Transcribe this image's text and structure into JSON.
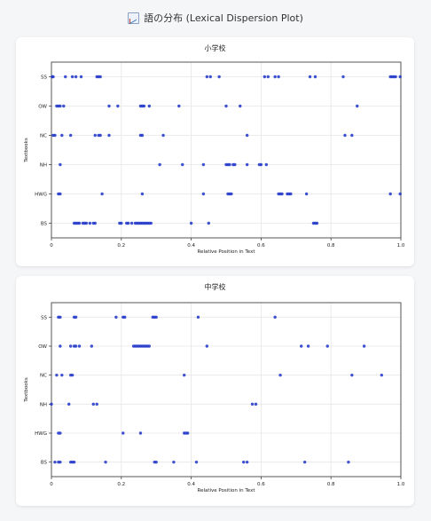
{
  "header": {
    "title": "語の分布 (Lexical Dispersion Plot)",
    "icon": "chart-icon"
  },
  "charts_meta": [
    {
      "card_title": "小学校"
    },
    {
      "card_title": "中学校"
    }
  ],
  "chart_data": [
    {
      "type": "scatter",
      "title": "小学校",
      "xlabel": "Relative Position in Text",
      "ylabel": "Textbooks",
      "xlim": [
        0,
        1
      ],
      "xticks": [
        "0",
        "0.2",
        "0.4",
        "0.6",
        "0.8",
        "1.0"
      ],
      "categories": [
        "SS",
        "OW",
        "NC",
        "NH",
        "HWG",
        "BS"
      ],
      "grid": true,
      "marker_color": "#1f35c9",
      "series": [
        {
          "category": "SS",
          "x": [
            0.002,
            0.005,
            0.04,
            0.06,
            0.07,
            0.085,
            0.13,
            0.135,
            0.14,
            0.445,
            0.455,
            0.48,
            0.61,
            0.62,
            0.64,
            0.65,
            0.74,
            0.755,
            0.835,
            0.97,
            0.975,
            0.98,
            0.985,
            0.998
          ]
        },
        {
          "category": "OW",
          "x": [
            0.015,
            0.02,
            0.025,
            0.035,
            0.165,
            0.19,
            0.255,
            0.26,
            0.265,
            0.28,
            0.365,
            0.5,
            0.54,
            0.875
          ]
        },
        {
          "category": "NC",
          "x": [
            0.005,
            0.01,
            0.03,
            0.055,
            0.125,
            0.135,
            0.14,
            0.165,
            0.255,
            0.26,
            0.32,
            0.56,
            0.84,
            0.86
          ]
        },
        {
          "category": "NH",
          "x": [
            0.025,
            0.31,
            0.375,
            0.435,
            0.5,
            0.505,
            0.51,
            0.52,
            0.525,
            0.56,
            0.595,
            0.6,
            0.615
          ]
        },
        {
          "category": "HWG",
          "x": [
            0.02,
            0.025,
            0.145,
            0.26,
            0.435,
            0.505,
            0.51,
            0.515,
            0.65,
            0.655,
            0.66,
            0.675,
            0.68,
            0.685,
            0.73,
            0.97,
            0.998
          ]
        },
        {
          "category": "BS",
          "x": [
            0.065,
            0.07,
            0.075,
            0.08,
            0.09,
            0.095,
            0.1,
            0.11,
            0.12,
            0.125,
            0.195,
            0.2,
            0.215,
            0.22,
            0.23,
            0.24,
            0.245,
            0.25,
            0.255,
            0.26,
            0.265,
            0.27,
            0.275,
            0.28,
            0.285,
            0.4,
            0.45,
            0.75,
            0.755,
            0.76
          ]
        }
      ]
    },
    {
      "type": "scatter",
      "title": "中学校",
      "xlabel": "Relative Position in Text",
      "ylabel": "Textbooks",
      "xlim": [
        0,
        1
      ],
      "xticks": [
        "0",
        "0.2",
        "0.4",
        "0.6",
        "0.8",
        "1.0"
      ],
      "categories": [
        "SS",
        "OW",
        "NC",
        "NH",
        "HWG",
        "BS"
      ],
      "grid": true,
      "marker_color": "#1f35c9",
      "series": [
        {
          "category": "SS",
          "x": [
            0.02,
            0.025,
            0.065,
            0.07,
            0.185,
            0.205,
            0.21,
            0.29,
            0.295,
            0.3,
            0.42,
            0.64
          ]
        },
        {
          "category": "OW",
          "x": [
            0.025,
            0.055,
            0.065,
            0.07,
            0.08,
            0.115,
            0.235,
            0.24,
            0.245,
            0.25,
            0.255,
            0.26,
            0.265,
            0.27,
            0.275,
            0.28,
            0.445,
            0.715,
            0.735,
            0.79,
            0.895
          ]
        },
        {
          "category": "NC",
          "x": [
            0.015,
            0.03,
            0.055,
            0.06,
            0.38,
            0.655,
            0.86,
            0.945
          ]
        },
        {
          "category": "NH",
          "x": [
            0.0,
            0.05,
            0.12,
            0.13,
            0.575,
            0.585
          ]
        },
        {
          "category": "HWG",
          "x": [
            0.02,
            0.025,
            0.205,
            0.255,
            0.38,
            0.385,
            0.39
          ]
        },
        {
          "category": "BS",
          "x": [
            0.01,
            0.02,
            0.025,
            0.055,
            0.06,
            0.065,
            0.155,
            0.295,
            0.3,
            0.35,
            0.415,
            0.55,
            0.56,
            0.725,
            0.85
          ]
        }
      ]
    }
  ]
}
